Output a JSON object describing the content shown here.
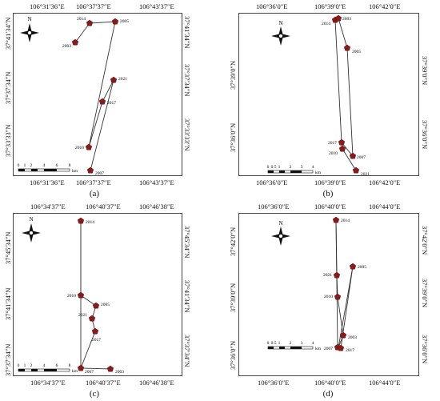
{
  "labels": {
    "north": "N",
    "km": "km"
  },
  "panels": [
    {
      "id": "a",
      "caption": "(a)",
      "lon_ticks": [
        "106°31′36″E",
        "106°37′37″E",
        "106°43′37″E"
      ],
      "lat_ticks": [
        "37°41′34″N",
        "37°37′34″N",
        "37°33′33″N"
      ],
      "scale_labels": [
        "0",
        "1",
        "2",
        "4",
        "6",
        "8"
      ],
      "points": [
        {
          "year": "2003"
        },
        {
          "year": "2014"
        },
        {
          "year": "2005"
        },
        {
          "year": "2021"
        },
        {
          "year": "2017"
        },
        {
          "year": "2010"
        },
        {
          "year": "2007"
        }
      ]
    },
    {
      "id": "b",
      "caption": "(b)",
      "lon_ticks": [
        "106°36′0″E",
        "106°39′0″E",
        "106°42′0″E"
      ],
      "lat_ticks": [
        "37°39′0″N",
        "37°36′0″N"
      ],
      "scale_labels": [
        "0",
        "0.5",
        "1",
        "2",
        "3",
        "4"
      ],
      "points": [
        {
          "year": "2014"
        },
        {
          "year": "2003"
        },
        {
          "year": "2005"
        },
        {
          "year": "2017"
        },
        {
          "year": "2010"
        },
        {
          "year": "2007"
        },
        {
          "year": "2021"
        }
      ]
    },
    {
      "id": "c",
      "caption": "(c)",
      "lon_ticks": [
        "106°34′37″E",
        "106°40′37″E",
        "106°46′38″E"
      ],
      "lat_ticks": [
        "37°45′34″N",
        "37°41′34″N",
        "37°37′34″N"
      ],
      "scale_labels": [
        "0",
        "1",
        "2",
        "4",
        "6",
        "8"
      ],
      "points": [
        {
          "year": "2014"
        },
        {
          "year": "2010"
        },
        {
          "year": "2005"
        },
        {
          "year": "2021"
        },
        {
          "year": "2017"
        },
        {
          "year": "2007"
        },
        {
          "year": "2003"
        }
      ]
    },
    {
      "id": "d",
      "caption": "(d)",
      "lon_ticks": [
        "106°36′0″E",
        "106°40′0″E",
        "106°44′0″E"
      ],
      "lat_ticks": [
        "37°42′0″N",
        "37°39′0″N",
        "37°36′0″N"
      ],
      "scale_labels": [
        "0",
        "0.5",
        "1",
        "2",
        "3",
        "4"
      ],
      "points": [
        {
          "year": "2014"
        },
        {
          "year": "2005"
        },
        {
          "year": "2021"
        },
        {
          "year": "2010"
        },
        {
          "year": "2003"
        },
        {
          "year": "2007"
        },
        {
          "year": "2017"
        }
      ]
    }
  ]
}
